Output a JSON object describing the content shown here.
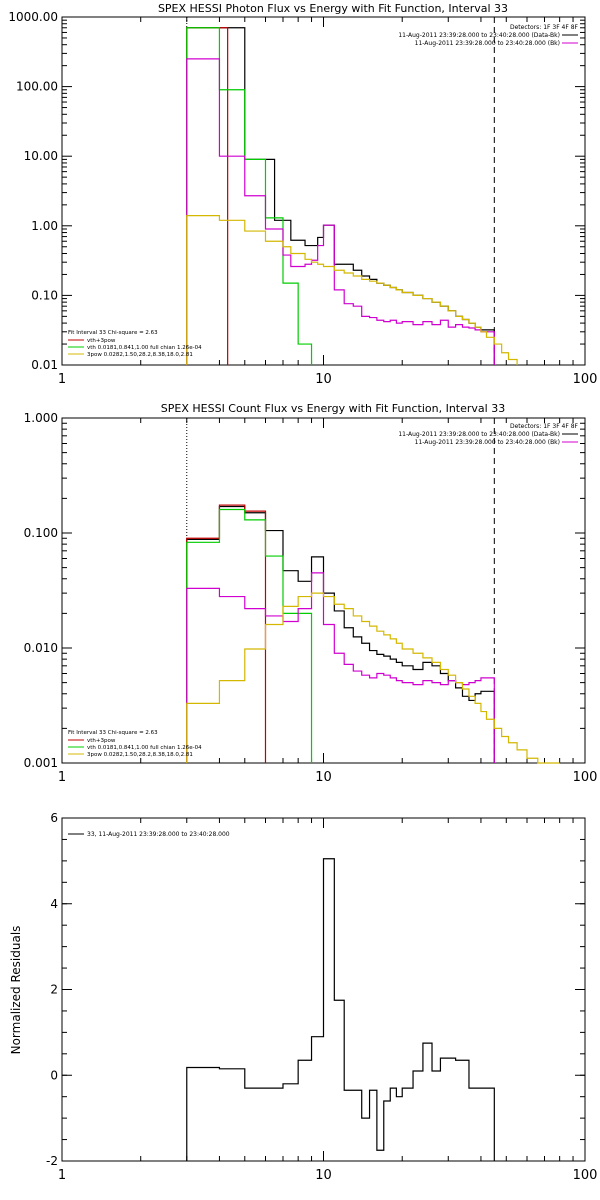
{
  "colors": {
    "black": "#000000",
    "red": "#c00000",
    "green": "#00cc00",
    "magenta": "#d000d0",
    "yellow": "#d4b800"
  },
  "chart_data": [
    {
      "type": "line",
      "title": "SPEX HESSI Photon Flux vs Energy with Fit Function, Interval 33",
      "xlabel": "",
      "ylabel": "",
      "xscale": "log",
      "yscale": "log",
      "xlim": [
        1,
        100
      ],
      "ylim": [
        0.01,
        1000
      ],
      "x_ticks": [
        "1",
        "10",
        "100"
      ],
      "y_ticks": [
        "0.01",
        "0.10",
        "1.00",
        "10.00",
        "100.00",
        "1000.00"
      ],
      "legend_top_right": [
        "Detectors: 1F 3F 4F 8F",
        "11-Aug-2011 23:39:28.000 to 23:40:28.000 (Data-Bk)",
        "11-Aug-2011 23:39:28.000 to 23:40:28.000 (Bk)"
      ],
      "legend_bottom_left": [
        "Fit Interval 33   Chi-square = 2.63",
        "vth+3pow",
        "vth 0.0181,0.841,1.00  full chian 1.26e-04",
        "3pow 0.0282,1.50,28.2,8.38,18.0,2.81"
      ],
      "fit_start_energy": 3,
      "fit_end_energy": 45,
      "series": [
        {
          "color": "black",
          "edges": [
            3,
            3.5,
            4,
            4.5,
            5,
            5.5,
            6,
            6.5,
            7,
            7.5,
            8,
            8.5,
            9,
            9.5,
            10,
            11,
            12,
            13,
            14,
            15,
            16,
            17,
            18,
            19,
            20,
            22,
            24,
            26,
            28,
            30,
            32,
            34,
            36,
            38,
            40,
            45
          ],
          "values": [
            700,
            700,
            700,
            700,
            9,
            9,
            9,
            1.2,
            1.2,
            0.62,
            0.62,
            0.52,
            0.52,
            0.68,
            1.02,
            0.28,
            0.28,
            0.23,
            0.19,
            0.17,
            0.15,
            0.14,
            0.13,
            0.12,
            0.11,
            0.1,
            0.09,
            0.08,
            0.07,
            0.06,
            0.05,
            0.045,
            0.04,
            0.035,
            0.032
          ]
        },
        {
          "color": "red",
          "edges": [
            3,
            4.3
          ],
          "values": [
            700
          ]
        },
        {
          "color": "green",
          "edges": [
            3,
            3.5,
            4,
            4.5,
            5,
            5.5,
            6,
            6.5,
            7,
            7.5,
            8,
            8.5,
            9
          ],
          "values": [
            700,
            700,
            90,
            90,
            9,
            9,
            1.3,
            1.3,
            0.15,
            0.15,
            0.02,
            0.02
          ]
        },
        {
          "color": "magenta",
          "edges": [
            3,
            3.5,
            4,
            4.5,
            5,
            5.5,
            6,
            6.5,
            7,
            7.5,
            8,
            8.5,
            9,
            9.5,
            10,
            11,
            12,
            13,
            14,
            15,
            16,
            17,
            18,
            19,
            20,
            22,
            24,
            26,
            28,
            30,
            32,
            34,
            36,
            38,
            40,
            45
          ],
          "values": [
            250,
            250,
            10,
            10,
            2.7,
            2.7,
            0.9,
            0.9,
            0.38,
            0.26,
            0.26,
            0.28,
            0.32,
            0.52,
            1.02,
            0.12,
            0.076,
            0.07,
            0.05,
            0.048,
            0.044,
            0.042,
            0.044,
            0.04,
            0.042,
            0.038,
            0.042,
            0.038,
            0.044,
            0.035,
            0.038,
            0.035,
            0.034,
            0.032,
            0.03
          ]
        },
        {
          "color": "yellow",
          "edges": [
            3,
            3.5,
            4,
            4.5,
            5,
            5.5,
            6,
            6.5,
            7,
            7.5,
            8,
            8.5,
            9,
            9.5,
            10,
            11,
            12,
            13,
            14,
            15,
            16,
            17,
            18,
            19,
            20,
            22,
            24,
            26,
            28,
            30,
            32,
            34,
            36,
            38,
            40,
            42,
            45,
            48,
            51,
            55
          ],
          "values": [
            1.4,
            1.4,
            1.2,
            1.2,
            0.84,
            0.84,
            0.6,
            0.6,
            0.5,
            0.4,
            0.4,
            0.33,
            0.3,
            0.28,
            0.26,
            0.23,
            0.21,
            0.19,
            0.17,
            0.16,
            0.15,
            0.14,
            0.13,
            0.12,
            0.11,
            0.1,
            0.09,
            0.08,
            0.07,
            0.06,
            0.05,
            0.045,
            0.04,
            0.035,
            0.03,
            0.025,
            0.02,
            0.015,
            0.012
          ]
        }
      ]
    },
    {
      "type": "line",
      "title": "SPEX HESSI Count Flux vs Energy with Fit Function, Interval 33",
      "xlabel": "",
      "ylabel": "",
      "xscale": "log",
      "yscale": "log",
      "xlim": [
        1,
        100
      ],
      "ylim": [
        0.001,
        1
      ],
      "x_ticks": [
        "1",
        "10",
        "100"
      ],
      "y_ticks": [
        "0.001",
        "0.010",
        "0.100",
        "1.000"
      ],
      "legend_top_right": [
        "Detectors: 1F 3F 4F 8F",
        "11-Aug-2011 23:39:28.000 to 23:40:28.000 (Data-Bk)",
        "11-Aug-2011 23:39:28.000 to 23:40:28.000 (Bk)"
      ],
      "legend_bottom_left": [
        "Fit Interval 33   Chi-square = 2.63",
        "vth+3pow",
        "vth 0.0181,0.841,1.00  full chian 1.26e-04",
        "3pow 0.0282,1.50,28.2,8.38,18.0,2.81"
      ],
      "fit_start_energy": 3,
      "fit_end_energy": 45,
      "series": [
        {
          "color": "black",
          "edges": [
            3,
            4,
            5,
            6,
            7,
            8,
            9,
            10,
            11,
            12,
            13,
            14,
            15,
            16,
            17,
            18,
            19,
            20,
            22,
            24,
            26,
            28,
            30,
            32,
            34,
            36,
            38,
            40,
            45
          ],
          "values": [
            0.088,
            0.17,
            0.15,
            0.105,
            0.047,
            0.038,
            0.062,
            0.03,
            0.021,
            0.015,
            0.0125,
            0.011,
            0.0095,
            0.0088,
            0.0085,
            0.008,
            0.0075,
            0.007,
            0.0065,
            0.0075,
            0.007,
            0.006,
            0.0052,
            0.0045,
            0.0038,
            0.0035,
            0.004,
            0.0042
          ]
        },
        {
          "color": "red",
          "edges": [
            3,
            4,
            5,
            6
          ],
          "values": [
            0.09,
            0.175,
            0.155
          ]
        },
        {
          "color": "green",
          "edges": [
            3,
            4,
            5,
            6,
            7,
            8,
            9
          ],
          "values": [
            0.083,
            0.16,
            0.13,
            0.063,
            0.02,
            0.02
          ]
        },
        {
          "color": "magenta",
          "edges": [
            3,
            4,
            5,
            6,
            7,
            8,
            9,
            10,
            11,
            12,
            13,
            14,
            15,
            16,
            17,
            18,
            19,
            20,
            22,
            24,
            26,
            28,
            30,
            32,
            34,
            36,
            38,
            40,
            45
          ],
          "values": [
            0.033,
            0.028,
            0.022,
            0.019,
            0.017,
            0.022,
            0.045,
            0.016,
            0.009,
            0.0072,
            0.0063,
            0.0058,
            0.0055,
            0.006,
            0.0058,
            0.0055,
            0.0052,
            0.005,
            0.0048,
            0.0052,
            0.005,
            0.0048,
            0.0052,
            0.005,
            0.0048,
            0.005,
            0.0052,
            0.0055
          ]
        },
        {
          "color": "yellow",
          "edges": [
            3,
            4,
            5,
            6,
            7,
            8,
            9,
            10,
            11,
            12,
            13,
            14,
            15,
            16,
            17,
            18,
            19,
            20,
            22,
            24,
            26,
            28,
            30,
            32,
            34,
            36,
            38,
            40,
            42,
            45,
            48,
            51,
            55,
            60,
            66,
            72,
            80
          ],
          "values": [
            0.0033,
            0.0052,
            0.0098,
            0.016,
            0.023,
            0.028,
            0.03,
            0.028,
            0.024,
            0.022,
            0.019,
            0.017,
            0.0155,
            0.014,
            0.013,
            0.012,
            0.011,
            0.0098,
            0.009,
            0.0082,
            0.0075,
            0.0065,
            0.0058,
            0.005,
            0.0044,
            0.0038,
            0.0033,
            0.0028,
            0.0024,
            0.002,
            0.0017,
            0.0015,
            0.0013,
            0.0011,
            0.001,
            0.001
          ]
        }
      ]
    },
    {
      "type": "line",
      "title": "",
      "xlabel": "",
      "ylabel": "Normalized Residuals",
      "xscale": "log",
      "yscale": "linear",
      "xlim": [
        1,
        100
      ],
      "ylim": [
        -2,
        6
      ],
      "x_ticks": [
        "1",
        "10",
        "100"
      ],
      "y_ticks": [
        "-2",
        "0",
        "2",
        "4",
        "6"
      ],
      "legend": "33, 11-Aug-2011 23:39:28.000 to 23:40:28.000",
      "series": [
        {
          "color": "black",
          "edges": [
            3,
            4,
            5,
            6,
            7,
            8,
            9,
            10,
            11,
            12,
            13,
            14,
            15,
            16,
            17,
            18,
            19,
            20,
            22,
            24,
            26,
            28,
            30,
            32,
            34,
            36,
            38,
            40,
            45
          ],
          "values": [
            0.18,
            0.15,
            -0.3,
            -0.3,
            -0.2,
            0.35,
            0.9,
            5.05,
            1.75,
            -0.35,
            -0.35,
            -1.0,
            -0.35,
            -1.75,
            -0.6,
            -0.3,
            -0.5,
            -0.3,
            0.1,
            0.75,
            0.1,
            0.4,
            0.4,
            0.35,
            0.35,
            -0.3,
            -0.3,
            -0.3
          ]
        }
      ]
    }
  ]
}
